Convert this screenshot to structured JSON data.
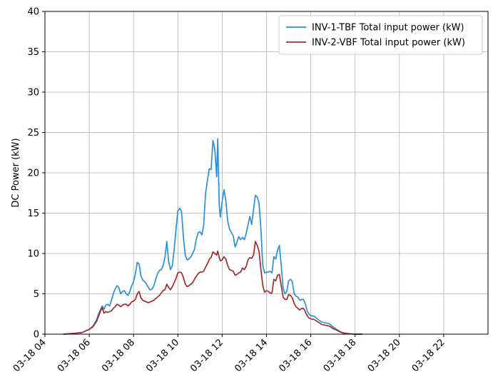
{
  "chart_data": {
    "type": "line",
    "title": "",
    "xlabel": "",
    "ylabel": "DC Power (kW)",
    "ylim": [
      0,
      40
    ],
    "xlim": [
      "03-18 04:00",
      "03-19 00:00"
    ],
    "x_tick_labels": [
      "03-18 04",
      "03-18 06",
      "03-18 08",
      "03-18 10",
      "03-18 12",
      "03-18 14",
      "03-18 16",
      "03-18 18",
      "03-18 20",
      "03-18 22"
    ],
    "y_tick_labels": [
      "0",
      "5",
      "10",
      "15",
      "20",
      "25",
      "30",
      "35",
      "40"
    ],
    "grid": true,
    "legend_position": "top-right",
    "series": [
      {
        "name": "INV-1-TBF Total input power (kW)",
        "color": "#2b90d9",
        "points": [
          [
            "03-18 04:50",
            0.0
          ],
          [
            "03-18 05:20",
            0.1
          ],
          [
            "03-18 05:40",
            0.2
          ],
          [
            "03-18 05:50",
            0.4
          ],
          [
            "03-18 06:00",
            0.6
          ],
          [
            "03-18 06:10",
            1.0
          ],
          [
            "03-18 06:20",
            1.8
          ],
          [
            "03-18 06:25",
            2.5
          ],
          [
            "03-18 06:30",
            3.0
          ],
          [
            "03-18 06:35",
            3.5
          ],
          [
            "03-18 06:40",
            3.1
          ],
          [
            "03-18 06:45",
            3.6
          ],
          [
            "03-18 06:50",
            3.7
          ],
          [
            "03-18 06:55",
            3.5
          ],
          [
            "03-18 07:00",
            4.2
          ],
          [
            "03-18 07:05",
            5.0
          ],
          [
            "03-18 07:10",
            5.6
          ],
          [
            "03-18 07:15",
            6.0
          ],
          [
            "03-18 07:20",
            5.8
          ],
          [
            "03-18 07:25",
            5.0
          ],
          [
            "03-18 07:30",
            5.3
          ],
          [
            "03-18 07:35",
            5.4
          ],
          [
            "03-18 07:40",
            5.0
          ],
          [
            "03-18 07:45",
            4.8
          ],
          [
            "03-18 07:50",
            5.3
          ],
          [
            "03-18 07:55",
            6.0
          ],
          [
            "03-18 08:00",
            6.5
          ],
          [
            "03-18 08:05",
            7.5
          ],
          [
            "03-18 08:10",
            8.9
          ],
          [
            "03-18 08:15",
            8.7
          ],
          [
            "03-18 08:20",
            7.2
          ],
          [
            "03-18 08:25",
            6.7
          ],
          [
            "03-18 08:30",
            6.5
          ],
          [
            "03-18 08:35",
            6.2
          ],
          [
            "03-18 08:40",
            5.8
          ],
          [
            "03-18 08:45",
            5.5
          ],
          [
            "03-18 08:50",
            5.6
          ],
          [
            "03-18 08:55",
            6.0
          ],
          [
            "03-18 09:00",
            6.8
          ],
          [
            "03-18 09:05",
            7.5
          ],
          [
            "03-18 09:10",
            7.9
          ],
          [
            "03-18 09:15",
            8.0
          ],
          [
            "03-18 09:20",
            8.5
          ],
          [
            "03-18 09:25",
            9.5
          ],
          [
            "03-18 09:30",
            11.5
          ],
          [
            "03-18 09:35",
            9.0
          ],
          [
            "03-18 09:40",
            8.0
          ],
          [
            "03-18 09:45",
            8.5
          ],
          [
            "03-18 09:50",
            10.5
          ],
          [
            "03-18 09:55",
            13.0
          ],
          [
            "03-18 10:00",
            15.3
          ],
          [
            "03-18 10:05",
            15.6
          ],
          [
            "03-18 10:10",
            15.2
          ],
          [
            "03-18 10:15",
            12.0
          ],
          [
            "03-18 10:20",
            9.8
          ],
          [
            "03-18 10:25",
            9.2
          ],
          [
            "03-18 10:30",
            9.3
          ],
          [
            "03-18 10:35",
            9.6
          ],
          [
            "03-18 10:40",
            10.0
          ],
          [
            "03-18 10:45",
            10.5
          ],
          [
            "03-18 10:50",
            11.8
          ],
          [
            "03-18 10:55",
            12.6
          ],
          [
            "03-18 11:00",
            12.7
          ],
          [
            "03-18 11:05",
            12.3
          ],
          [
            "03-18 11:10",
            13.5
          ],
          [
            "03-18 11:15",
            17.5
          ],
          [
            "03-18 11:20",
            19.0
          ],
          [
            "03-18 11:25",
            20.5
          ],
          [
            "03-18 11:30",
            20.4
          ],
          [
            "03-18 11:35",
            24.0
          ],
          [
            "03-18 11:40",
            23.0
          ],
          [
            "03-18 11:45",
            19.5
          ],
          [
            "03-18 11:48",
            24.2
          ],
          [
            "03-18 11:52",
            16.0
          ],
          [
            "03-18 11:55",
            14.5
          ],
          [
            "03-18 12:00",
            16.5
          ],
          [
            "03-18 12:05",
            17.9
          ],
          [
            "03-18 12:10",
            16.5
          ],
          [
            "03-18 12:15",
            14.0
          ],
          [
            "03-18 12:20",
            13.0
          ],
          [
            "03-18 12:25",
            12.6
          ],
          [
            "03-18 12:30",
            12.2
          ],
          [
            "03-18 12:35",
            10.8
          ],
          [
            "03-18 12:40",
            11.4
          ],
          [
            "03-18 12:45",
            12.1
          ],
          [
            "03-18 12:50",
            11.7
          ],
          [
            "03-18 12:55",
            12.0
          ],
          [
            "03-18 13:00",
            11.7
          ],
          [
            "03-18 13:05",
            12.5
          ],
          [
            "03-18 13:10",
            13.5
          ],
          [
            "03-18 13:15",
            14.6
          ],
          [
            "03-18 13:20",
            13.6
          ],
          [
            "03-18 13:25",
            15.5
          ],
          [
            "03-18 13:30",
            17.2
          ],
          [
            "03-18 13:35",
            17.0
          ],
          [
            "03-18 13:40",
            16.2
          ],
          [
            "03-18 13:45",
            13.0
          ],
          [
            "03-18 13:50",
            8.5
          ],
          [
            "03-18 13:55",
            7.6
          ],
          [
            "03-18 14:00",
            7.7
          ],
          [
            "03-18 14:05",
            7.7
          ],
          [
            "03-18 14:10",
            7.8
          ],
          [
            "03-18 14:15",
            7.6
          ],
          [
            "03-18 14:20",
            9.6
          ],
          [
            "03-18 14:25",
            9.3
          ],
          [
            "03-18 14:30",
            10.4
          ],
          [
            "03-18 14:35",
            11.0
          ],
          [
            "03-18 14:40",
            8.5
          ],
          [
            "03-18 14:45",
            5.7
          ],
          [
            "03-18 14:50",
            5.0
          ],
          [
            "03-18 14:55",
            5.3
          ],
          [
            "03-18 15:00",
            6.6
          ],
          [
            "03-18 15:05",
            6.8
          ],
          [
            "03-18 15:10",
            6.5
          ],
          [
            "03-18 15:15",
            5.0
          ],
          [
            "03-18 15:20",
            4.7
          ],
          [
            "03-18 15:25",
            4.6
          ],
          [
            "03-18 15:30",
            4.2
          ],
          [
            "03-18 15:35",
            4.3
          ],
          [
            "03-18 15:40",
            4.3
          ],
          [
            "03-18 15:45",
            3.8
          ],
          [
            "03-18 15:50",
            2.9
          ],
          [
            "03-18 15:55",
            2.5
          ],
          [
            "03-18 16:00",
            2.3
          ],
          [
            "03-18 16:10",
            2.2
          ],
          [
            "03-18 16:20",
            1.8
          ],
          [
            "03-18 16:30",
            1.5
          ],
          [
            "03-18 16:40",
            1.4
          ],
          [
            "03-18 16:50",
            1.3
          ],
          [
            "03-18 17:00",
            0.9
          ],
          [
            "03-18 17:10",
            0.6
          ],
          [
            "03-18 17:20",
            0.3
          ],
          [
            "03-18 17:30",
            0.15
          ],
          [
            "03-18 17:45",
            0.05
          ],
          [
            "03-18 18:00",
            0.0
          ],
          [
            "03-18 18:20",
            0.0
          ]
        ]
      },
      {
        "name": "INV-2-VBF Total input power (kW)",
        "color": "#a52a2a",
        "points": [
          [
            "03-18 04:50",
            0.0
          ],
          [
            "03-18 05:20",
            0.1
          ],
          [
            "03-18 05:40",
            0.2
          ],
          [
            "03-18 05:50",
            0.4
          ],
          [
            "03-18 06:00",
            0.6
          ],
          [
            "03-18 06:10",
            0.9
          ],
          [
            "03-18 06:20",
            1.6
          ],
          [
            "03-18 06:25",
            2.2
          ],
          [
            "03-18 06:30",
            2.8
          ],
          [
            "03-18 06:35",
            3.3
          ],
          [
            "03-18 06:40",
            2.6
          ],
          [
            "03-18 06:45",
            2.8
          ],
          [
            "03-18 06:50",
            2.7
          ],
          [
            "03-18 06:55",
            2.8
          ],
          [
            "03-18 07:00",
            2.9
          ],
          [
            "03-18 07:05",
            3.2
          ],
          [
            "03-18 07:10",
            3.4
          ],
          [
            "03-18 07:15",
            3.7
          ],
          [
            "03-18 07:20",
            3.6
          ],
          [
            "03-18 07:25",
            3.4
          ],
          [
            "03-18 07:30",
            3.6
          ],
          [
            "03-18 07:35",
            3.7
          ],
          [
            "03-18 07:40",
            3.7
          ],
          [
            "03-18 07:45",
            3.5
          ],
          [
            "03-18 07:50",
            3.7
          ],
          [
            "03-18 07:55",
            4.0
          ],
          [
            "03-18 08:00",
            4.1
          ],
          [
            "03-18 08:05",
            4.3
          ],
          [
            "03-18 08:10",
            5.0
          ],
          [
            "03-18 08:15",
            5.3
          ],
          [
            "03-18 08:20",
            4.5
          ],
          [
            "03-18 08:25",
            4.2
          ],
          [
            "03-18 08:30",
            4.1
          ],
          [
            "03-18 08:35",
            4.0
          ],
          [
            "03-18 08:40",
            3.9
          ],
          [
            "03-18 08:45",
            4.0
          ],
          [
            "03-18 08:50",
            4.1
          ],
          [
            "03-18 08:55",
            4.2
          ],
          [
            "03-18 09:00",
            4.4
          ],
          [
            "03-18 09:05",
            4.6
          ],
          [
            "03-18 09:10",
            4.8
          ],
          [
            "03-18 09:15",
            5.1
          ],
          [
            "03-18 09:20",
            5.4
          ],
          [
            "03-18 09:25",
            5.5
          ],
          [
            "03-18 09:30",
            6.2
          ],
          [
            "03-18 09:35",
            5.8
          ],
          [
            "03-18 09:40",
            5.5
          ],
          [
            "03-18 09:45",
            5.9
          ],
          [
            "03-18 09:50",
            6.4
          ],
          [
            "03-18 09:55",
            6.9
          ],
          [
            "03-18 10:00",
            7.6
          ],
          [
            "03-18 10:05",
            7.7
          ],
          [
            "03-18 10:10",
            7.6
          ],
          [
            "03-18 10:15",
            7.0
          ],
          [
            "03-18 10:20",
            6.2
          ],
          [
            "03-18 10:25",
            5.9
          ],
          [
            "03-18 10:30",
            6.0
          ],
          [
            "03-18 10:35",
            6.2
          ],
          [
            "03-18 10:40",
            6.4
          ],
          [
            "03-18 10:45",
            6.8
          ],
          [
            "03-18 10:50",
            7.2
          ],
          [
            "03-18 10:55",
            7.5
          ],
          [
            "03-18 11:00",
            7.7
          ],
          [
            "03-18 11:05",
            7.7
          ],
          [
            "03-18 11:10",
            7.8
          ],
          [
            "03-18 11:15",
            8.3
          ],
          [
            "03-18 11:20",
            8.7
          ],
          [
            "03-18 11:25",
            9.3
          ],
          [
            "03-18 11:30",
            9.5
          ],
          [
            "03-18 11:35",
            10.2
          ],
          [
            "03-18 11:40",
            10.0
          ],
          [
            "03-18 11:45",
            9.8
          ],
          [
            "03-18 11:48",
            10.3
          ],
          [
            "03-18 11:52",
            9.5
          ],
          [
            "03-18 11:55",
            9.1
          ],
          [
            "03-18 12:00",
            9.2
          ],
          [
            "03-18 12:05",
            9.6
          ],
          [
            "03-18 12:10",
            9.3
          ],
          [
            "03-18 12:15",
            8.5
          ],
          [
            "03-18 12:20",
            8.0
          ],
          [
            "03-18 12:25",
            7.9
          ],
          [
            "03-18 12:30",
            7.8
          ],
          [
            "03-18 12:35",
            7.3
          ],
          [
            "03-18 12:40",
            7.4
          ],
          [
            "03-18 12:45",
            7.6
          ],
          [
            "03-18 12:50",
            7.7
          ],
          [
            "03-18 12:55",
            8.2
          ],
          [
            "03-18 13:00",
            8.0
          ],
          [
            "03-18 13:05",
            8.4
          ],
          [
            "03-18 13:10",
            9.2
          ],
          [
            "03-18 13:15",
            9.5
          ],
          [
            "03-18 13:20",
            9.4
          ],
          [
            "03-18 13:25",
            9.8
          ],
          [
            "03-18 13:30",
            11.5
          ],
          [
            "03-18 13:35",
            11.0
          ],
          [
            "03-18 13:40",
            10.2
          ],
          [
            "03-18 13:45",
            8.0
          ],
          [
            "03-18 13:50",
            6.0
          ],
          [
            "03-18 13:55",
            5.2
          ],
          [
            "03-18 14:00",
            5.4
          ],
          [
            "03-18 14:05",
            5.3
          ],
          [
            "03-18 14:10",
            5.1
          ],
          [
            "03-18 14:15",
            5.1
          ],
          [
            "03-18 14:20",
            6.8
          ],
          [
            "03-18 14:25",
            6.6
          ],
          [
            "03-18 14:30",
            7.3
          ],
          [
            "03-18 14:35",
            7.4
          ],
          [
            "03-18 14:40",
            6.0
          ],
          [
            "03-18 14:45",
            4.6
          ],
          [
            "03-18 14:50",
            4.3
          ],
          [
            "03-18 14:55",
            4.3
          ],
          [
            "03-18 15:00",
            4.9
          ],
          [
            "03-18 15:05",
            4.8
          ],
          [
            "03-18 15:10",
            4.5
          ],
          [
            "03-18 15:15",
            3.8
          ],
          [
            "03-18 15:20",
            3.4
          ],
          [
            "03-18 15:25",
            3.2
          ],
          [
            "03-18 15:30",
            3.0
          ],
          [
            "03-18 15:35",
            3.2
          ],
          [
            "03-18 15:40",
            3.2
          ],
          [
            "03-18 15:45",
            2.8
          ],
          [
            "03-18 15:50",
            2.3
          ],
          [
            "03-18 15:55",
            2.0
          ],
          [
            "03-18 16:00",
            1.9
          ],
          [
            "03-18 16:10",
            1.8
          ],
          [
            "03-18 16:20",
            1.5
          ],
          [
            "03-18 16:30",
            1.2
          ],
          [
            "03-18 16:40",
            1.1
          ],
          [
            "03-18 16:50",
            1.0
          ],
          [
            "03-18 17:00",
            0.7
          ],
          [
            "03-18 17:10",
            0.5
          ],
          [
            "03-18 17:20",
            0.25
          ],
          [
            "03-18 17:30",
            0.1
          ],
          [
            "03-18 17:45",
            0.05
          ],
          [
            "03-18 18:00",
            0.0
          ],
          [
            "03-18 18:20",
            0.0
          ]
        ]
      }
    ]
  }
}
